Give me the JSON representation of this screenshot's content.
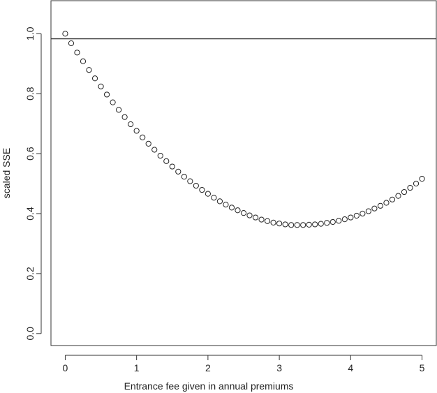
{
  "chart_data": {
    "type": "scatter",
    "title": "",
    "xlabel": "Entrance fee given in annual premiums",
    "ylabel": "scaled SSE",
    "xlim": [
      -0.2,
      5.2
    ],
    "ylim": [
      -0.04,
      1.11
    ],
    "xticks": [
      0,
      1,
      2,
      3,
      4,
      5
    ],
    "yticks": [
      0.0,
      0.2,
      0.4,
      0.6,
      0.8,
      1.0
    ],
    "xtick_labels": [
      "0",
      "1",
      "2",
      "3",
      "4",
      "5"
    ],
    "ytick_labels": [
      "0.0",
      "0.2",
      "0.4",
      "0.6",
      "0.8",
      "1.0"
    ],
    "grid": false,
    "reference_line": {
      "orientation": "horizontal",
      "y": 0.983
    },
    "series": [
      {
        "marker": "open-circle",
        "x": [
          0.0,
          0.0833,
          0.1667,
          0.25,
          0.3333,
          0.4167,
          0.5,
          0.5833,
          0.6667,
          0.75,
          0.8333,
          0.9167,
          1.0,
          1.0833,
          1.1667,
          1.25,
          1.3333,
          1.4167,
          1.5,
          1.5833,
          1.6667,
          1.75,
          1.8333,
          1.9167,
          2.0,
          2.0833,
          2.1667,
          2.25,
          2.3333,
          2.4167,
          2.5,
          2.5833,
          2.6667,
          2.75,
          2.8333,
          2.9167,
          3.0,
          3.0833,
          3.1667,
          3.25,
          3.3333,
          3.4167,
          3.5,
          3.5833,
          3.6667,
          3.75,
          3.8333,
          3.9167,
          4.0,
          4.0833,
          4.1667,
          4.25,
          4.3333,
          4.4167,
          4.5,
          4.5833,
          4.6667,
          4.75,
          4.8333,
          4.9167,
          5.0
        ],
        "y": [
          1.0,
          0.968,
          0.937,
          0.908,
          0.879,
          0.851,
          0.824,
          0.797,
          0.771,
          0.746,
          0.722,
          0.698,
          0.676,
          0.654,
          0.633,
          0.613,
          0.593,
          0.575,
          0.557,
          0.54,
          0.523,
          0.508,
          0.493,
          0.479,
          0.466,
          0.453,
          0.441,
          0.43,
          0.42,
          0.411,
          0.402,
          0.394,
          0.387,
          0.38,
          0.375,
          0.37,
          0.367,
          0.364,
          0.362,
          0.362,
          0.362,
          0.363,
          0.364,
          0.366,
          0.369,
          0.372,
          0.376,
          0.381,
          0.387,
          0.393,
          0.4,
          0.408,
          0.417,
          0.426,
          0.436,
          0.447,
          0.459,
          0.472,
          0.486,
          0.5,
          0.516
        ]
      }
    ]
  },
  "style": {
    "axis_color": "#333333",
    "point_stroke": "#222222",
    "reference_line_color": "#333333"
  }
}
